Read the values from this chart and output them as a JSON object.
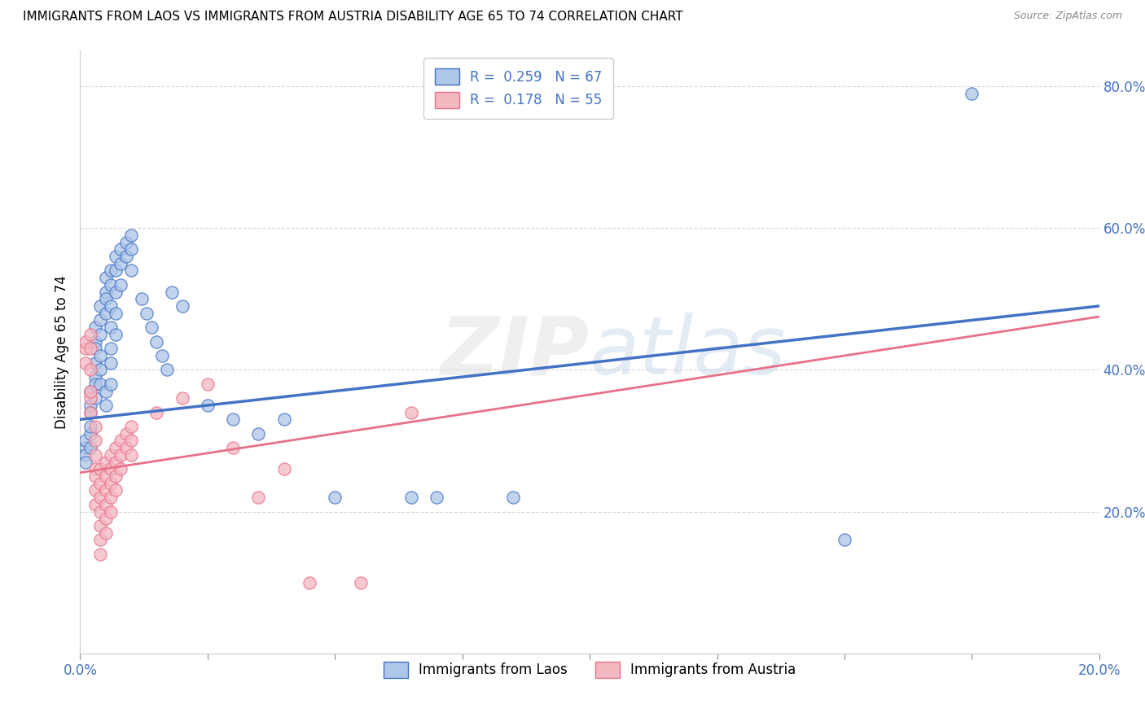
{
  "title": "IMMIGRANTS FROM LAOS VS IMMIGRANTS FROM AUSTRIA DISABILITY AGE 65 TO 74 CORRELATION CHART",
  "source": "Source: ZipAtlas.com",
  "ylabel": "Disability Age 65 to 74",
  "x_min": 0.0,
  "x_max": 0.2,
  "y_min": 0.0,
  "y_max": 0.85,
  "laos_color": "#aec6e8",
  "austria_color": "#f4b8c1",
  "laos_line_color": "#4472c4",
  "austria_line_color": "#e8718a",
  "laos_R": 0.259,
  "laos_N": 67,
  "austria_R": 0.178,
  "austria_N": 55,
  "watermark": "ZIPatlas",
  "laos_intercept": 0.33,
  "laos_slope": 0.8,
  "austria_intercept": 0.255,
  "austria_slope": 1.1,
  "laos_points": [
    [
      0.001,
      0.29
    ],
    [
      0.001,
      0.28
    ],
    [
      0.001,
      0.27
    ],
    [
      0.001,
      0.3
    ],
    [
      0.002,
      0.31
    ],
    [
      0.002,
      0.29
    ],
    [
      0.002,
      0.32
    ],
    [
      0.002,
      0.35
    ],
    [
      0.002,
      0.37
    ],
    [
      0.002,
      0.34
    ],
    [
      0.003,
      0.39
    ],
    [
      0.003,
      0.41
    ],
    [
      0.003,
      0.38
    ],
    [
      0.003,
      0.36
    ],
    [
      0.003,
      0.44
    ],
    [
      0.003,
      0.46
    ],
    [
      0.003,
      0.43
    ],
    [
      0.004,
      0.47
    ],
    [
      0.004,
      0.49
    ],
    [
      0.004,
      0.45
    ],
    [
      0.004,
      0.42
    ],
    [
      0.004,
      0.4
    ],
    [
      0.004,
      0.38
    ],
    [
      0.005,
      0.51
    ],
    [
      0.005,
      0.53
    ],
    [
      0.005,
      0.5
    ],
    [
      0.005,
      0.48
    ],
    [
      0.005,
      0.35
    ],
    [
      0.005,
      0.37
    ],
    [
      0.006,
      0.52
    ],
    [
      0.006,
      0.54
    ],
    [
      0.006,
      0.49
    ],
    [
      0.006,
      0.46
    ],
    [
      0.006,
      0.43
    ],
    [
      0.006,
      0.41
    ],
    [
      0.006,
      0.38
    ],
    [
      0.007,
      0.56
    ],
    [
      0.007,
      0.54
    ],
    [
      0.007,
      0.51
    ],
    [
      0.007,
      0.48
    ],
    [
      0.007,
      0.45
    ],
    [
      0.008,
      0.57
    ],
    [
      0.008,
      0.55
    ],
    [
      0.008,
      0.52
    ],
    [
      0.009,
      0.58
    ],
    [
      0.009,
      0.56
    ],
    [
      0.01,
      0.59
    ],
    [
      0.01,
      0.57
    ],
    [
      0.01,
      0.54
    ],
    [
      0.012,
      0.5
    ],
    [
      0.013,
      0.48
    ],
    [
      0.014,
      0.46
    ],
    [
      0.015,
      0.44
    ],
    [
      0.016,
      0.42
    ],
    [
      0.017,
      0.4
    ],
    [
      0.018,
      0.51
    ],
    [
      0.02,
      0.49
    ],
    [
      0.025,
      0.35
    ],
    [
      0.03,
      0.33
    ],
    [
      0.035,
      0.31
    ],
    [
      0.04,
      0.33
    ],
    [
      0.05,
      0.22
    ],
    [
      0.065,
      0.22
    ],
    [
      0.07,
      0.22
    ],
    [
      0.085,
      0.22
    ],
    [
      0.15,
      0.16
    ],
    [
      0.175,
      0.79
    ]
  ],
  "austria_points": [
    [
      0.001,
      0.43
    ],
    [
      0.001,
      0.44
    ],
    [
      0.001,
      0.41
    ],
    [
      0.002,
      0.45
    ],
    [
      0.002,
      0.43
    ],
    [
      0.002,
      0.4
    ],
    [
      0.002,
      0.36
    ],
    [
      0.002,
      0.34
    ],
    [
      0.002,
      0.37
    ],
    [
      0.003,
      0.32
    ],
    [
      0.003,
      0.3
    ],
    [
      0.003,
      0.28
    ],
    [
      0.003,
      0.26
    ],
    [
      0.003,
      0.25
    ],
    [
      0.003,
      0.23
    ],
    [
      0.003,
      0.21
    ],
    [
      0.004,
      0.26
    ],
    [
      0.004,
      0.24
    ],
    [
      0.004,
      0.22
    ],
    [
      0.004,
      0.2
    ],
    [
      0.004,
      0.18
    ],
    [
      0.004,
      0.16
    ],
    [
      0.004,
      0.14
    ],
    [
      0.005,
      0.27
    ],
    [
      0.005,
      0.25
    ],
    [
      0.005,
      0.23
    ],
    [
      0.005,
      0.21
    ],
    [
      0.005,
      0.19
    ],
    [
      0.005,
      0.17
    ],
    [
      0.006,
      0.28
    ],
    [
      0.006,
      0.26
    ],
    [
      0.006,
      0.24
    ],
    [
      0.006,
      0.22
    ],
    [
      0.006,
      0.2
    ],
    [
      0.007,
      0.29
    ],
    [
      0.007,
      0.27
    ],
    [
      0.007,
      0.25
    ],
    [
      0.007,
      0.23
    ],
    [
      0.008,
      0.3
    ],
    [
      0.008,
      0.28
    ],
    [
      0.008,
      0.26
    ],
    [
      0.009,
      0.31
    ],
    [
      0.009,
      0.29
    ],
    [
      0.01,
      0.32
    ],
    [
      0.01,
      0.3
    ],
    [
      0.01,
      0.28
    ],
    [
      0.015,
      0.34
    ],
    [
      0.02,
      0.36
    ],
    [
      0.025,
      0.38
    ],
    [
      0.03,
      0.29
    ],
    [
      0.035,
      0.22
    ],
    [
      0.04,
      0.26
    ],
    [
      0.045,
      0.1
    ],
    [
      0.055,
      0.1
    ],
    [
      0.065,
      0.34
    ]
  ]
}
